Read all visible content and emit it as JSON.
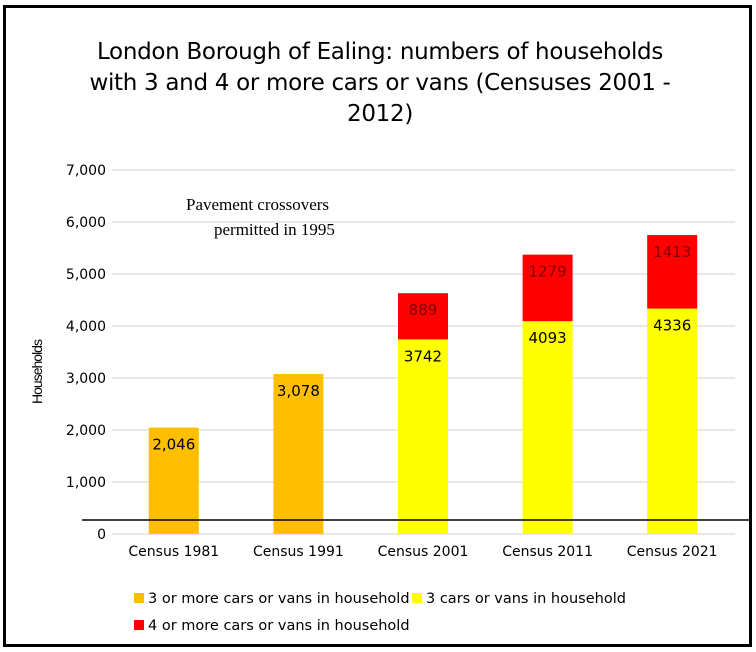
{
  "chart_data": {
    "type": "bar",
    "stacked": true,
    "title": "London Borough of Ealing: numbers of households with 3 and 4 or more cars or vans (Censuses 2001 - 2012)",
    "title_lines": [
      "London Borough of Ealing: numbers of households",
      "with 3 and 4 or more cars or vans (Censuses 2001 -",
      "2012)"
    ],
    "xlabel": "",
    "ylabel": "Households",
    "ylim": [
      0,
      7000
    ],
    "yticks": [
      0,
      1000,
      2000,
      3000,
      4000,
      5000,
      6000,
      7000
    ],
    "ytick_labels": [
      "0",
      "1,000",
      "2,000",
      "3,000",
      "4,000",
      "5,000",
      "6,000",
      "7,000"
    ],
    "grid": true,
    "categories": [
      "Census 1981",
      "Census 1991",
      "Census 2001",
      "Census 2011",
      "Census 2021"
    ],
    "series": [
      {
        "name": "3 or more cars or vans in household",
        "color": "#FFBF00",
        "label_color": "#000000",
        "values": [
          2046,
          3078,
          null,
          null,
          null
        ],
        "value_labels": [
          "2,046",
          "3,078",
          "",
          "",
          ""
        ]
      },
      {
        "name": "3 cars or vans in household",
        "color": "#FFFF00",
        "label_color": "#000000",
        "values": [
          null,
          null,
          3742,
          4093,
          4336
        ],
        "value_labels": [
          "",
          "",
          "3742",
          "4093",
          "4336"
        ]
      },
      {
        "name": "4 or more cars or vans in household",
        "color": "#FF0000",
        "label_color": "#7F0000",
        "values": [
          null,
          null,
          889,
          1279,
          1413
        ],
        "value_labels": [
          "",
          "",
          "889",
          "1279",
          "1413"
        ]
      }
    ],
    "annotations": [
      {
        "text_lines": [
          "Pavement crossovers",
          "permitted in 1995"
        ]
      }
    ],
    "legend_position": "bottom",
    "reference_line": {
      "description": "black horizontal line across plot near baseline"
    }
  }
}
